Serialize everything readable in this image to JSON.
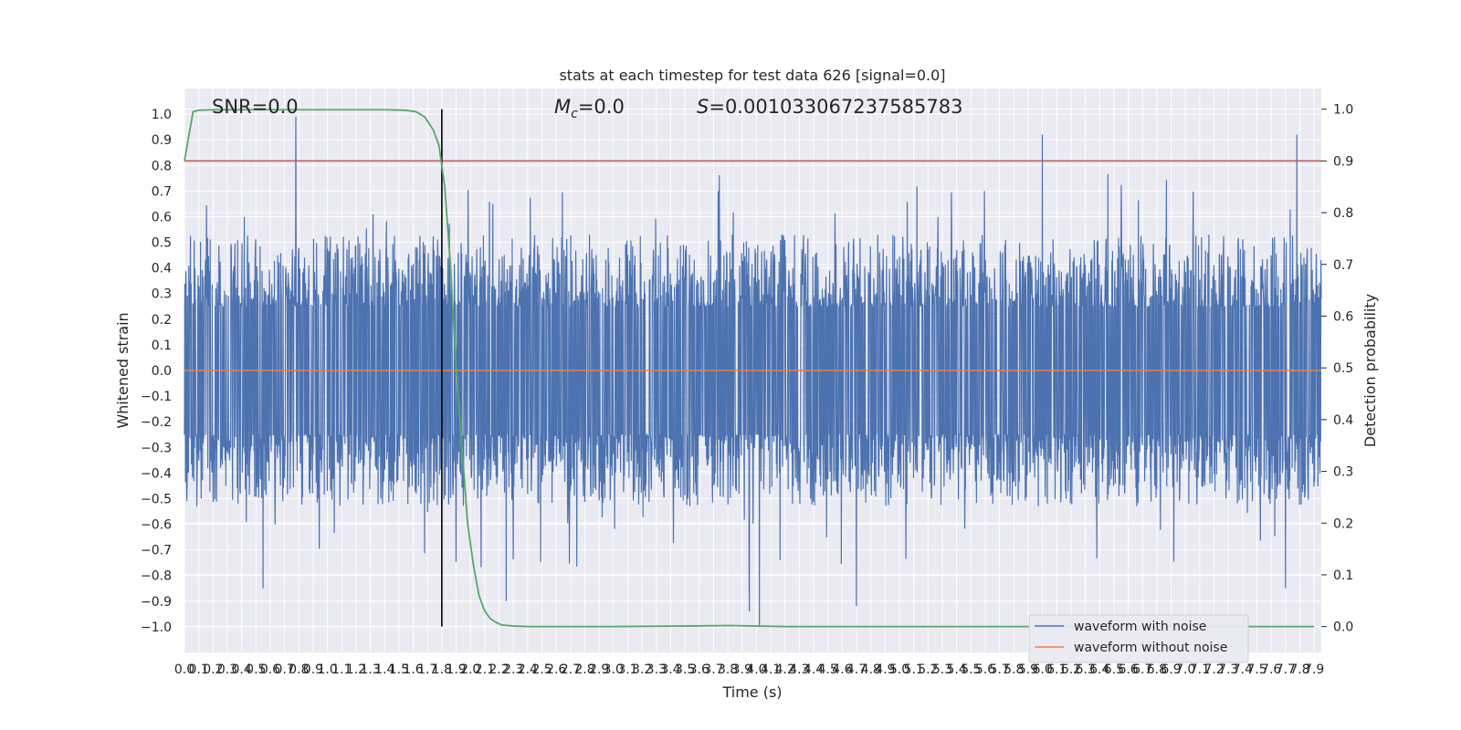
{
  "chart_data": {
    "type": "line",
    "title": "stats at each timestep for test data 626 [signal=0.0]",
    "annotations": {
      "snr": "SNR=0.0",
      "mc_symbol": "M",
      "mc_subscript": "c",
      "mc_value": "=0.0",
      "s_symbol": "S",
      "s_value": "=0.001033067237585783"
    },
    "xlabel": "Time (s)",
    "ylabel_left": "Whitened strain",
    "ylabel_right": "Detection probability",
    "xlim": [
      0.0,
      7.95
    ],
    "ylim_left": [
      -1.1,
      1.1
    ],
    "ylim_right": [
      -0.05,
      1.04
    ],
    "x_ticks": [
      "0.0",
      "0.1",
      "0.2",
      "0.3",
      "0.4",
      "0.5",
      "0.6",
      "0.7",
      "0.8",
      "0.9",
      "1.0",
      "1.1",
      "1.2",
      "1.3",
      "1.4",
      "1.5",
      "1.6",
      "1.7",
      "1.8",
      "1.9",
      "2.0",
      "2.1",
      "2.2",
      "2.3",
      "2.4",
      "2.5",
      "2.6",
      "2.7",
      "2.8",
      "2.9",
      "3.0",
      "3.1",
      "3.2",
      "3.3",
      "3.4",
      "3.5",
      "3.6",
      "3.7",
      "3.8",
      "3.9",
      "4.0",
      "4.1",
      "4.2",
      "4.3",
      "4.4",
      "4.5",
      "4.6",
      "4.7",
      "4.8",
      "4.9",
      "5.0",
      "5.1",
      "5.2",
      "5.3",
      "5.4",
      "5.5",
      "5.6",
      "5.7",
      "5.8",
      "5.9",
      "6.0",
      "6.1",
      "6.2",
      "6.3",
      "6.4",
      "6.5",
      "6.6",
      "6.7",
      "6.8",
      "6.9",
      "7.0",
      "7.1",
      "7.2",
      "7.3",
      "7.4",
      "7.5",
      "7.6",
      "7.7",
      "7.8",
      "7.9"
    ],
    "y_ticks_left": [
      "1.0",
      "0.9",
      "0.8",
      "0.7",
      "0.6",
      "0.5",
      "0.4",
      "0.3",
      "0.2",
      "0.1",
      "0.0",
      "-0.1",
      "-0.2",
      "-0.3",
      "-0.4",
      "-0.5",
      "-0.6",
      "-0.7",
      "-0.8",
      "-0.9",
      "-1.0"
    ],
    "y_ticks_right": [
      "1.0",
      "0.9",
      "0.8",
      "0.7",
      "0.6",
      "0.5",
      "0.4",
      "0.3",
      "0.2",
      "0.1",
      "0.0"
    ],
    "grid": true,
    "legend_position": "bottom-right",
    "series": [
      {
        "name": "waveform with noise",
        "axis": "left",
        "color": "#4c72b0",
        "description": "dense noise, amplitude mostly within ±0.5, peaks near ±0.85",
        "extremes": [
          {
            "x": 0.78,
            "y": 0.99
          },
          {
            "x": 6.0,
            "y": 0.92
          },
          {
            "x": 7.78,
            "y": 0.92
          },
          {
            "x": 4.02,
            "y": -1.0
          },
          {
            "x": 3.95,
            "y": -0.94
          },
          {
            "x": 4.7,
            "y": -0.92
          },
          {
            "x": 2.25,
            "y": -0.9
          },
          {
            "x": 0.55,
            "y": -0.85
          },
          {
            "x": 7.7,
            "y": -0.85
          }
        ]
      },
      {
        "name": "waveform without noise",
        "axis": "left",
        "color": "#dd8452",
        "x": [
          0.0,
          7.95
        ],
        "y": [
          0.0,
          0.0
        ]
      },
      {
        "axis": "right",
        "color": "#55a868",
        "x": [
          0.0,
          0.06,
          0.1,
          0.2,
          0.5,
          1.0,
          1.4,
          1.55,
          1.62,
          1.68,
          1.74,
          1.78,
          1.82,
          1.86,
          1.9,
          1.94,
          1.98,
          2.02,
          2.06,
          2.1,
          2.14,
          2.18,
          2.22,
          2.3,
          2.4,
          2.6,
          3.0,
          3.5,
          3.8,
          4.0,
          4.2,
          5.0,
          6.0,
          7.0,
          7.9
        ],
        "y": [
          0.9,
          0.995,
          0.998,
          0.999,
          0.999,
          0.999,
          0.999,
          0.998,
          0.995,
          0.985,
          0.96,
          0.93,
          0.85,
          0.7,
          0.5,
          0.35,
          0.2,
          0.12,
          0.06,
          0.03,
          0.015,
          0.008,
          0.003,
          0.001,
          0.0,
          0.0,
          0.0,
          0.001,
          0.002,
          0.001,
          0.0,
          0.0,
          0.0,
          0.0,
          0.0
        ]
      }
    ],
    "threshold_line": {
      "axis": "right",
      "y": 0.9,
      "color": "#c44e52"
    },
    "vertical_marker": {
      "x": 1.8,
      "color": "#000000"
    }
  }
}
